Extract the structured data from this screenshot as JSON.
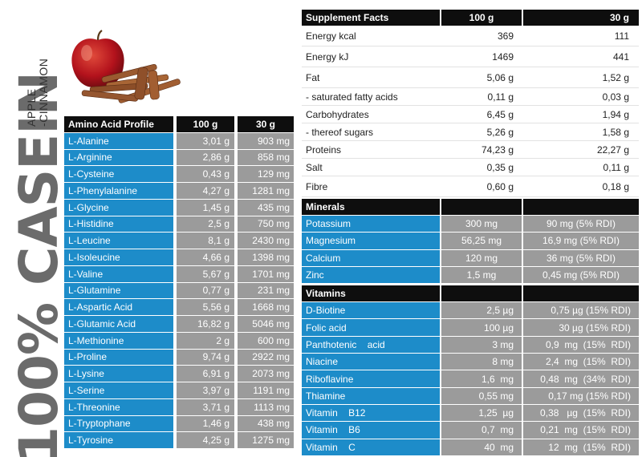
{
  "brand": {
    "title": "100% CASEIN",
    "flavour_line1": "APPLE",
    "flavour_line2": "-CINNAMON"
  },
  "amino": {
    "headers": [
      "Amino Acid Profile",
      "100 g",
      "30 g"
    ],
    "rows": [
      {
        "name": "L-Alanine",
        "v100": "3,01 g",
        "v30": "903 mg"
      },
      {
        "name": "L-Arginine",
        "v100": "2,86 g",
        "v30": "858 mg"
      },
      {
        "name": "L-Cysteine",
        "v100": "0,43 g",
        "v30": "129 mg"
      },
      {
        "name": "L-Phenylalanine",
        "v100": "4,27 g",
        "v30": "1281 mg"
      },
      {
        "name": "L-Glycine",
        "v100": "1,45 g",
        "v30": "435 mg"
      },
      {
        "name": "L-Histidine",
        "v100": "2,5 g",
        "v30": "750 mg"
      },
      {
        "name": "L-Leucine",
        "v100": "8,1 g",
        "v30": "2430 mg"
      },
      {
        "name": "L-Isoleucine",
        "v100": "4,66 g",
        "v30": "1398 mg"
      },
      {
        "name": "L-Valine",
        "v100": "5,67 g",
        "v30": "1701 mg"
      },
      {
        "name": "L-Glutamine",
        "v100": "0,77 g",
        "v30": "231 mg"
      },
      {
        "name": "L-Aspartic Acid",
        "v100": "5,56 g",
        "v30": "1668 mg"
      },
      {
        "name": "L-Glutamic Acid",
        "v100": "16,82 g",
        "v30": "5046 mg"
      },
      {
        "name": "L-Methionine",
        "v100": "2 g",
        "v30": "600 mg"
      },
      {
        "name": "L-Proline",
        "v100": "9,74 g",
        "v30": "2922 mg"
      },
      {
        "name": "L-Lysine",
        "v100": "6,91 g",
        "v30": "2073 mg"
      },
      {
        "name": "L-Serine",
        "v100": "3,97 g",
        "v30": "1191 mg"
      },
      {
        "name": "L-Threonine",
        "v100": "3,71 g",
        "v30": "1113 mg"
      },
      {
        "name": "L-Tryptophane",
        "v100": "1,46 g",
        "v30": "438 mg"
      },
      {
        "name": "L-Tyrosine",
        "v100": "4,25 g",
        "v30": "1275 mg"
      }
    ]
  },
  "facts": {
    "headers": [
      "Supplement Facts",
      "100 g",
      "30 g"
    ],
    "rows": [
      {
        "name": "Energy  kcal",
        "v100": "369",
        "v30": "111",
        "tall": true
      },
      {
        "name": "Energy  kJ",
        "v100": "1469",
        "v30": "441",
        "tall": true
      },
      {
        "name": "Fat",
        "v100": "5,06 g",
        "v30": "1,52 g",
        "tall": true
      },
      {
        "name": "- saturated fatty acids",
        "v100": "0,11 g",
        "v30": "0,03 g",
        "tall": false
      },
      {
        "name": "Carbohydrates",
        "v100": "6,45 g",
        "v30": "1,94 g",
        "tall": false
      },
      {
        "name": "- thereof sugars",
        "v100": "5,26 g",
        "v30": "1,58 g",
        "tall": false
      },
      {
        "name": "Proteins",
        "v100": "74,23 g",
        "v30": "22,27 g",
        "tall": false
      },
      {
        "name": "Salt",
        "v100": "0,35 g",
        "v30": "0,11 g",
        "tall": false
      },
      {
        "name": "Fibre",
        "v100": "0,60 g",
        "v30": "0,18 g",
        "tall": true
      }
    ]
  },
  "minerals": {
    "header": "Minerals",
    "rows": [
      {
        "name": "Potassium",
        "v100": "300 mg",
        "v30": "90 mg (5% RDI)"
      },
      {
        "name": "Magnesium",
        "v100": "56,25 mg",
        "v30": "16,9 mg (5% RDI)"
      },
      {
        "name": "Calcium",
        "v100": "120 mg",
        "v30": "36 mg (5% RDI)"
      },
      {
        "name": "Zinc",
        "v100": "1,5 mg",
        "v30": "0,45 mg (5% RDI)"
      }
    ]
  },
  "vitamins": {
    "header": "Vitamins",
    "rows": [
      {
        "name": "D-Biotine",
        "v100": "2,5 µg",
        "v30": "0,75 µg (15% RDI)"
      },
      {
        "name": "Folic acid",
        "v100": "100 µg",
        "v30": "30 µg (15% RDI)"
      },
      {
        "name": "Panthotenic    acid",
        "v100": "3 mg",
        "v30": "0,9  mg  (15%  RDI)"
      },
      {
        "name": "Niacine",
        "v100": "8 mg",
        "v30": "2,4  mg  (15%  RDI)"
      },
      {
        "name": "Riboflavine",
        "v100": "1,6  mg",
        "v30": "0,48  mg  (34%  RDI)"
      },
      {
        "name": "Thiamine",
        "v100": "0,55 mg",
        "v30": "0,17 mg (15% RDI)"
      },
      {
        "name": "Vitamin    B12",
        "v100": "1,25  µg",
        "v30": "0,38   µg  (15%  RDI)"
      },
      {
        "name": "Vitamin    B6",
        "v100": "0,7  mg",
        "v30": "0,21  mg  (15%  RDI)"
      },
      {
        "name": "Vitamin    C",
        "v100": "40  mg",
        "v30": "12  mg  (15%  RDI)"
      }
    ]
  },
  "colors": {
    "accent_blue": "#1d8cc9",
    "value_grey": "#9b9b9b",
    "header_black": "#0e0e0e",
    "brand_grey": "#6b6b6b"
  }
}
